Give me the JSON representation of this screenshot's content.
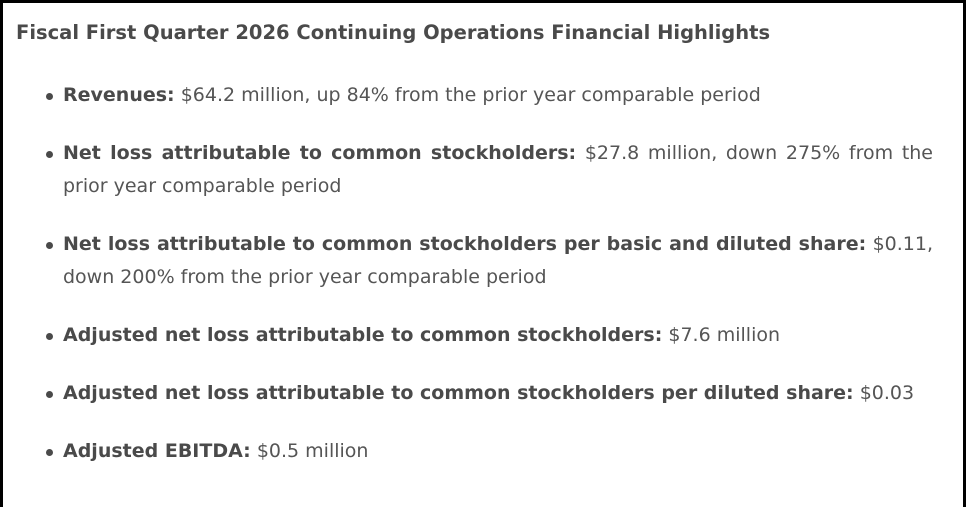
{
  "title": "Fiscal First Quarter 2026 Continuing Operations Financial Highlights",
  "highlights": [
    {
      "label": "Revenues:",
      "value": "$64.2 million, up 84% from the prior year comparable period"
    },
    {
      "label": "Net loss attributable to common stockholders:",
      "value": "$27.8 million, down 275% from the prior year comparable period"
    },
    {
      "label": "Net loss attributable to common stockholders per basic and diluted share:",
      "value": "$0.11, down 200% from the prior year comparable period"
    },
    {
      "label": "Adjusted net loss attributable to common stockholders:",
      "value": "$7.6 million"
    },
    {
      "label": "Adjusted net loss attributable to common stockholders per diluted share:",
      "value": "$0.03"
    },
    {
      "label": "Adjusted EBITDA:",
      "value": "$0.5 million"
    }
  ]
}
